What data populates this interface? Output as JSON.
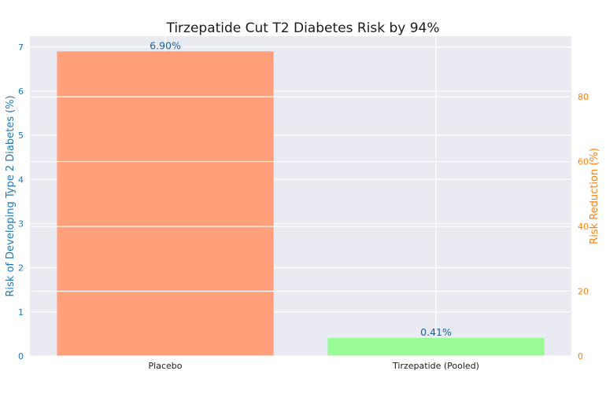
{
  "chart_data": {
    "type": "bar",
    "title": "Tirzepatide Cut T2 Diabetes Risk by 94%",
    "categories": [
      "Placebo",
      "Tirzepatide (Pooled)"
    ],
    "values": [
      6.9,
      0.41
    ],
    "value_labels": [
      "6.90%",
      "0.41%"
    ],
    "bar_colors": [
      "#ffa07a",
      "#98fb98"
    ],
    "ylabel": "Risk of Developing Type 2 Diabetes (%)",
    "ylim": [
      0,
      7.245
    ],
    "yticks": [
      0,
      1,
      2,
      3,
      4,
      5,
      6,
      7
    ],
    "y2label": "Risk Reduction (%)",
    "y2lim": [
      0,
      98.7
    ],
    "y2ticks": [
      0,
      20,
      40,
      60,
      80
    ],
    "grid": true,
    "colors": {
      "background": "#eaeaf2",
      "grid": "#ffffff",
      "left_axis": "#1f77b4",
      "right_axis": "#ff7f0e"
    }
  }
}
